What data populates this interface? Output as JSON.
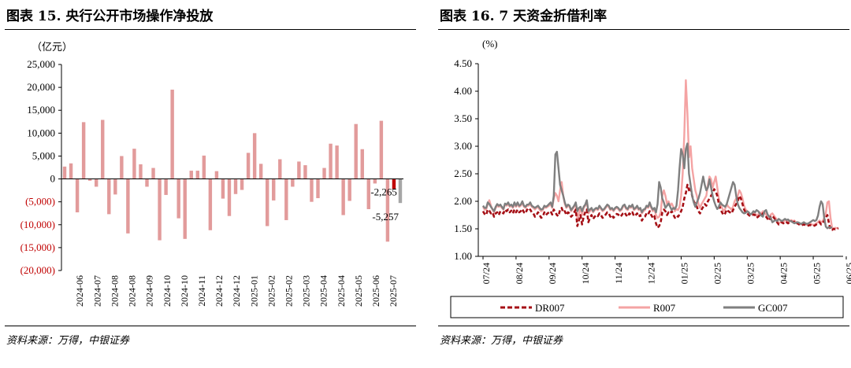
{
  "left": {
    "title": "图表 15. 央行公开市场操作净投放",
    "source": "资料来源：万得，中银证券",
    "chart_data": {
      "type": "bar",
      "title": "图表 15. 央行公开市场操作净投放",
      "ylabel": "（亿元）",
      "ylim": [
        -20000,
        25000
      ],
      "yticks": [
        25000,
        20000,
        15000,
        10000,
        5000,
        0,
        -5000,
        -10000,
        -15000,
        -20000
      ],
      "ytick_labels": [
        "25,000",
        "20,000",
        "15,000",
        "10,000",
        "5,000",
        "0",
        "(5,000)",
        "(10,000)",
        "(15,000)",
        "(20,000)"
      ],
      "xtick_labels": [
        "2024-06",
        "2024-07",
        "2024-08",
        "2024-08",
        "2024-09",
        "2024-10",
        "2024-10",
        "2024-11",
        "2024-12",
        "2024-12",
        "2025-01",
        "2025-02",
        "2025-02",
        "2025-03",
        "2025-04",
        "2025-04",
        "2025-05",
        "2025-06",
        "2025-07"
      ],
      "values": [
        2700,
        3400,
        -7300,
        12400,
        -400,
        -1700,
        12900,
        -7700,
        -3400,
        5000,
        -11900,
        6600,
        3200,
        -1700,
        2400,
        -13400,
        -3500,
        19500,
        -8600,
        -13100,
        1800,
        1800,
        5100,
        -11200,
        1700,
        -4300,
        -8100,
        -3300,
        -2400,
        5700,
        10000,
        3300,
        -10300,
        -4700,
        4300,
        -9000,
        -1700,
        3800,
        3000,
        -5000,
        -4200,
        2400,
        7700,
        7300,
        -7900,
        -4800,
        12000,
        6500,
        -6600,
        -1000,
        12700,
        -13700
      ],
      "highlight": [
        {
          "index": 52,
          "value": -2265,
          "color": "#c00000",
          "label": "-2,265"
        },
        {
          "index": 53,
          "value": -5257,
          "color": "#a6a6a6",
          "label": "-5,257"
        }
      ],
      "bar_color": "#e29b9b",
      "positive_tick_color": "#000000",
      "negative_tick_color": "#c00000"
    }
  },
  "right": {
    "title": "图表 16. 7 天资金折借利率",
    "source": "资料来源：万得，中银证券",
    "chart_data": {
      "type": "line",
      "title": "图表 16. 7 天资金折借利率",
      "ylabel": "(%)",
      "ylim": [
        1.0,
        4.5
      ],
      "yticks": [
        4.5,
        4.0,
        3.5,
        3.0,
        2.5,
        2.0,
        1.5,
        1.0
      ],
      "ytick_labels": [
        "4.50",
        "4.00",
        "3.50",
        "3.00",
        "2.50",
        "2.00",
        "1.50",
        "1.00"
      ],
      "xtick_labels": [
        "07/24",
        "08/24",
        "09/24",
        "10/24",
        "11/24",
        "12/24",
        "01/25",
        "02/25",
        "03/25",
        "04/25",
        "05/25",
        "06/25"
      ],
      "x_month_length": 21,
      "series": [
        {
          "name": "DR007",
          "color": "#a50f15",
          "style": "dashed",
          "values": [
            1.82,
            1.77,
            1.75,
            1.85,
            1.83,
            1.78,
            1.8,
            1.72,
            1.78,
            1.8,
            1.75,
            1.82,
            1.8,
            1.78,
            1.85,
            1.82,
            1.85,
            1.8,
            1.83,
            1.78,
            1.85,
            1.8,
            1.85,
            1.8,
            1.82,
            1.86,
            1.8,
            1.78,
            1.85,
            1.82,
            1.85,
            1.8,
            1.78,
            1.72,
            1.75,
            1.8,
            1.75,
            1.7,
            1.72,
            1.8,
            1.75,
            1.78,
            1.8,
            1.82,
            1.76,
            1.85,
            1.8,
            1.75,
            1.73,
            1.85,
            1.88,
            1.8,
            1.82,
            1.75,
            1.8,
            1.78,
            1.72,
            1.75,
            1.8,
            1.85,
            1.55,
            1.65,
            1.75,
            1.58,
            1.72,
            1.8,
            1.85,
            1.62,
            1.7,
            1.75,
            1.68,
            1.72,
            1.75,
            1.73,
            1.78,
            1.75,
            1.7,
            1.72,
            1.76,
            1.8,
            1.78,
            1.72,
            1.75,
            1.7,
            1.74,
            1.77,
            1.76,
            1.72,
            1.74,
            1.78,
            1.8,
            1.75,
            1.72,
            1.78,
            1.76,
            1.8,
            1.73,
            1.75,
            1.78,
            1.72,
            1.75,
            1.65,
            1.7,
            1.72,
            1.78,
            1.76,
            1.82,
            1.75,
            1.7,
            1.73,
            1.6,
            1.52,
            1.55,
            1.62,
            1.8,
            1.85,
            1.82,
            1.75,
            1.8,
            1.78,
            1.82,
            1.76,
            1.7,
            1.74,
            1.72,
            1.76,
            1.82,
            1.9,
            2.05,
            2.15,
            2.3,
            2.2,
            2.25,
            2.1,
            2.0,
            1.95,
            1.9,
            1.82,
            1.78,
            1.85,
            1.9,
            1.95,
            1.92,
            2.0,
            2.05,
            2.1,
            2.15,
            2.22,
            2.18,
            2.1,
            1.95,
            1.85,
            1.8,
            1.75,
            1.78,
            1.85,
            1.82,
            1.8,
            1.78,
            1.84,
            1.9,
            1.95,
            2.0,
            2.1,
            2.05,
            1.95,
            1.85,
            1.8,
            1.78,
            1.75,
            1.73,
            1.74,
            1.76,
            1.75,
            1.7,
            1.72,
            1.75,
            1.74,
            1.78,
            1.76,
            1.72,
            1.68,
            1.65,
            1.72,
            1.74,
            1.7,
            1.66,
            1.62,
            1.58,
            1.6,
            1.62,
            1.6,
            1.63,
            1.62,
            1.6,
            1.62,
            1.64,
            1.62,
            1.63,
            1.6,
            1.6,
            1.58,
            1.56,
            1.57,
            1.58,
            1.57,
            1.55,
            1.56,
            1.57,
            1.56,
            1.55,
            1.56,
            1.58,
            1.6,
            1.62,
            1.58,
            1.6,
            1.65,
            1.7,
            1.75,
            1.6,
            1.48,
            1.48,
            1.5,
            1.49,
            1.5,
            1.51
          ]
        },
        {
          "name": "R007",
          "color": "#f4a3a3",
          "style": "solid",
          "values": [
            1.9,
            1.85,
            1.85,
            1.95,
            2.02,
            1.92,
            1.85,
            1.8,
            1.88,
            1.92,
            1.9,
            1.92,
            1.88,
            1.85,
            1.95,
            1.92,
            1.95,
            1.9,
            1.92,
            1.88,
            1.95,
            1.9,
            1.95,
            1.9,
            1.92,
            1.98,
            1.9,
            1.88,
            1.92,
            1.92,
            1.95,
            1.9,
            1.88,
            1.85,
            1.88,
            1.9,
            1.85,
            1.82,
            1.84,
            1.9,
            1.88,
            1.9,
            1.92,
            1.95,
            1.88,
            2.05,
            2.15,
            2.1,
            2.0,
            2.2,
            2.35,
            2.1,
            1.95,
            1.88,
            1.92,
            1.9,
            1.82,
            1.86,
            1.9,
            1.95,
            1.68,
            1.78,
            1.88,
            1.75,
            1.88,
            1.92,
            2.0,
            1.78,
            1.82,
            1.86,
            1.8,
            1.84,
            1.86,
            1.84,
            1.9,
            1.86,
            1.82,
            1.84,
            1.88,
            1.92,
            1.9,
            1.84,
            1.86,
            1.82,
            1.86,
            1.88,
            1.86,
            1.82,
            1.84,
            1.9,
            1.92,
            1.86,
            1.84,
            1.9,
            1.88,
            1.92,
            1.84,
            1.86,
            1.9,
            1.84,
            1.86,
            1.78,
            1.82,
            1.84,
            1.9,
            1.88,
            1.95,
            1.88,
            1.82,
            1.86,
            1.75,
            1.7,
            1.72,
            1.8,
            2.1,
            2.2,
            2.1,
            1.95,
            2.0,
            1.92,
            1.96,
            1.9,
            1.82,
            1.86,
            1.84,
            1.9,
            2.1,
            2.5,
            3.2,
            4.2,
            3.6,
            2.8,
            3.0,
            2.6,
            2.4,
            2.2,
            2.1,
            1.95,
            1.88,
            1.95,
            2.0,
            2.05,
            2.1,
            2.3,
            2.45,
            2.4,
            2.25,
            2.35,
            2.45,
            2.25,
            2.05,
            1.95,
            1.88,
            1.82,
            1.86,
            1.95,
            1.9,
            1.88,
            1.85,
            1.9,
            2.0,
            2.05,
            2.1,
            2.2,
            2.15,
            2.05,
            1.92,
            1.85,
            1.82,
            1.78,
            1.76,
            1.77,
            1.8,
            1.78,
            1.74,
            1.76,
            1.8,
            1.78,
            1.82,
            1.8,
            1.76,
            1.7,
            1.68,
            1.76,
            1.78,
            1.74,
            1.7,
            1.66,
            1.6,
            1.62,
            1.64,
            1.62,
            1.66,
            1.65,
            1.62,
            1.64,
            1.66,
            1.64,
            1.65,
            1.62,
            1.62,
            1.6,
            1.58,
            1.59,
            1.6,
            1.59,
            1.57,
            1.58,
            1.6,
            1.58,
            1.57,
            1.58,
            1.6,
            1.62,
            1.65,
            1.62,
            1.64,
            1.7,
            1.78,
            1.98,
            2.0,
            1.7,
            1.52,
            1.5,
            1.52,
            1.51,
            1.52
          ]
        },
        {
          "name": "GC007",
          "color": "#7f7f7f",
          "style": "solid",
          "values": [
            1.92,
            1.88,
            1.88,
            1.98,
            1.95,
            1.9,
            1.86,
            1.82,
            1.9,
            1.95,
            1.92,
            1.94,
            1.9,
            1.86,
            1.96,
            1.94,
            1.98,
            1.92,
            1.94,
            1.9,
            1.98,
            1.92,
            1.98,
            1.92,
            1.94,
            2.0,
            1.92,
            1.9,
            1.94,
            1.94,
            1.98,
            1.92,
            1.9,
            1.88,
            1.9,
            1.92,
            1.88,
            1.85,
            1.86,
            1.92,
            1.9,
            1.92,
            1.95,
            1.98,
            1.9,
            2.1,
            2.85,
            2.9,
            2.6,
            2.3,
            2.2,
            2.1,
            1.98,
            1.9,
            1.94,
            1.92,
            1.84,
            1.88,
            1.92,
            1.98,
            1.82,
            1.88,
            1.9,
            1.82,
            1.9,
            1.94,
            2.02,
            1.82,
            1.85,
            1.88,
            1.82,
            1.86,
            1.88,
            1.86,
            1.92,
            1.88,
            1.84,
            1.86,
            1.9,
            1.94,
            1.92,
            1.86,
            1.88,
            1.84,
            1.88,
            1.9,
            1.88,
            1.84,
            1.86,
            1.92,
            1.94,
            1.88,
            1.86,
            1.92,
            1.9,
            1.94,
            1.86,
            1.88,
            1.92,
            1.86,
            1.88,
            1.8,
            1.85,
            1.86,
            1.92,
            1.9,
            1.98,
            1.9,
            1.85,
            1.88,
            1.8,
            1.95,
            2.35,
            2.25,
            2.05,
            1.98,
            1.88,
            1.92,
            1.96,
            1.9,
            1.84,
            1.88,
            1.86,
            1.92,
            2.2,
            2.6,
            2.95,
            2.85,
            2.6,
            2.95,
            3.05,
            2.5,
            2.3,
            2.1,
            1.98,
            1.9,
            1.98,
            2.05,
            2.15,
            2.3,
            2.45,
            2.3,
            2.2,
            2.25,
            2.4,
            2.25,
            2.1,
            2.0,
            1.92,
            1.86,
            1.9,
            1.98,
            1.94,
            1.92,
            1.9,
            1.95,
            2.05,
            2.15,
            2.25,
            2.35,
            2.3,
            2.1,
            1.95,
            1.88,
            1.84,
            1.8,
            1.78,
            1.79,
            1.82,
            1.8,
            1.76,
            1.78,
            1.82,
            1.8,
            1.84,
            1.82,
            1.78,
            1.74,
            1.72,
            1.82,
            1.84,
            1.76,
            1.72,
            1.7,
            1.62,
            1.64,
            1.66,
            1.64,
            1.68,
            1.66,
            1.64,
            1.66,
            1.68,
            1.66,
            1.67,
            1.64,
            1.64,
            1.62,
            1.6,
            1.61,
            1.62,
            1.61,
            1.59,
            1.6,
            1.62,
            1.6,
            1.59,
            1.6,
            1.62,
            1.64,
            1.66,
            1.64,
            1.66,
            1.74,
            1.9,
            2.0,
            1.95,
            1.7,
            1.54,
            1.51,
            1.53,
            1.52,
            1.53
          ]
        }
      ],
      "legend": {
        "position": "bottom",
        "entries": [
          "DR007",
          "R007",
          "GC007"
        ]
      }
    }
  }
}
